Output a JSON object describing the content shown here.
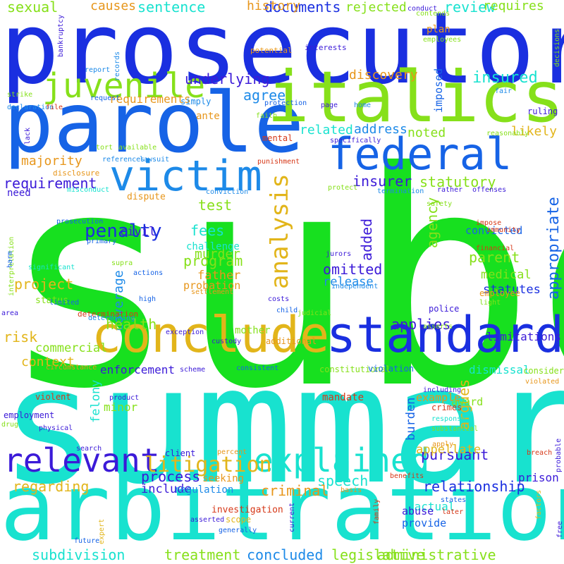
{
  "colors": {
    "blue": "#1a2fe0",
    "mid_blue": "#1663e6",
    "sky_blue": "#1d8ae8",
    "green": "#17e01f",
    "lime": "#86e01a",
    "cyan": "#18e2cf",
    "gold": "#e2b51a",
    "orange": "#e7961b",
    "red": "#d63818",
    "violet": "#3b1ad8"
  },
  "words": [
    {
      "text": "subd",
      "color": "green"
    },
    {
      "text": "summary",
      "color": "cyan"
    },
    {
      "text": "prosecutor",
      "color": "blue"
    },
    {
      "text": "arbitration",
      "color": "cyan"
    },
    {
      "text": "parole",
      "color": "mid_blue"
    },
    {
      "text": "italics",
      "color": "lime"
    },
    {
      "text": "conclude",
      "color": "gold"
    },
    {
      "text": "standard",
      "color": "blue"
    },
    {
      "text": "federal",
      "color": "mid_blue"
    },
    {
      "text": "victim",
      "color": "sky_blue"
    },
    {
      "text": "juvenile",
      "color": "lime"
    },
    {
      "text": "explained",
      "color": "cyan"
    },
    {
      "text": "relevant",
      "color": "violet"
    },
    {
      "text": "analysis",
      "color": "gold"
    },
    {
      "text": "litigation",
      "color": "gold"
    },
    {
      "text": "appropriate",
      "color": "mid_blue"
    },
    {
      "text": "penalty",
      "color": "blue"
    },
    {
      "text": "sexual",
      "color": "lime"
    },
    {
      "text": "causes",
      "color": "orange"
    },
    {
      "text": "sentence",
      "color": "cyan"
    },
    {
      "text": "documents",
      "color": "blue"
    },
    {
      "text": "review",
      "color": "cyan"
    },
    {
      "text": "rejected",
      "color": "lime"
    },
    {
      "text": "history",
      "color": "orange"
    },
    {
      "text": "requires",
      "color": "lime"
    },
    {
      "text": "underlying",
      "color": "violet"
    },
    {
      "text": "insured",
      "color": "cyan"
    },
    {
      "text": "agree",
      "color": "sky_blue"
    },
    {
      "text": "requirements",
      "color": "orange"
    },
    {
      "text": "discovery",
      "color": "orange"
    },
    {
      "text": "imposed",
      "color": "mid_blue"
    },
    {
      "text": "plan",
      "color": "orange"
    },
    {
      "text": "potential",
      "color": "orange"
    },
    {
      "text": "interests",
      "color": "violet"
    },
    {
      "text": "related",
      "color": "cyan"
    },
    {
      "text": "address",
      "color": "sky_blue"
    },
    {
      "text": "noted",
      "color": "lime"
    },
    {
      "text": "likely",
      "color": "gold"
    },
    {
      "text": "majority",
      "color": "orange"
    },
    {
      "text": "insurer",
      "color": "violet"
    },
    {
      "text": "statutory",
      "color": "lime"
    },
    {
      "text": "requirement",
      "color": "violet"
    },
    {
      "text": "test",
      "color": "lime"
    },
    {
      "text": "civil",
      "color": "violet"
    },
    {
      "text": "fees",
      "color": "cyan"
    },
    {
      "text": "murder",
      "color": "lime"
    },
    {
      "text": "program",
      "color": "lime"
    },
    {
      "text": "coverage",
      "color": "sky_blue"
    },
    {
      "text": "challenge",
      "color": "cyan"
    },
    {
      "text": "father",
      "color": "orange"
    },
    {
      "text": "probation",
      "color": "orange"
    },
    {
      "text": "project",
      "color": "gold"
    },
    {
      "text": "omitted",
      "color": "violet"
    },
    {
      "text": "release",
      "color": "sky_blue"
    },
    {
      "text": "added",
      "color": "violet"
    },
    {
      "text": "agency",
      "color": "lime"
    },
    {
      "text": "parent",
      "color": "lime"
    },
    {
      "text": "convicted",
      "color": "mid_blue"
    },
    {
      "text": "medical",
      "color": "lime"
    },
    {
      "text": "statutes",
      "color": "blue"
    },
    {
      "text": "health",
      "color": "lime"
    },
    {
      "text": "applies",
      "color": "violet"
    },
    {
      "text": "argues",
      "color": "gold"
    },
    {
      "text": "risk",
      "color": "gold"
    },
    {
      "text": "commercial",
      "color": "lime"
    },
    {
      "text": "context",
      "color": "gold"
    },
    {
      "text": "enforcement",
      "color": "violet"
    },
    {
      "text": "limitations",
      "color": "violet"
    },
    {
      "text": "dismissal",
      "color": "cyan"
    },
    {
      "text": "burden",
      "color": "mid_blue"
    },
    {
      "text": "pursuant",
      "color": "violet"
    },
    {
      "text": "felony",
      "color": "cyan"
    },
    {
      "text": "minor",
      "color": "lime"
    },
    {
      "text": "award",
      "color": "lime"
    },
    {
      "text": "example",
      "color": "orange"
    },
    {
      "text": "appellate",
      "color": "gold"
    },
    {
      "text": "process",
      "color": "violet"
    },
    {
      "text": "include",
      "color": "violet"
    },
    {
      "text": "speech",
      "color": "cyan"
    },
    {
      "text": "relationship",
      "color": "blue"
    },
    {
      "text": "regarding",
      "color": "gold"
    },
    {
      "text": "criminal",
      "color": "orange"
    },
    {
      "text": "factual",
      "color": "cyan"
    },
    {
      "text": "prison",
      "color": "violet"
    },
    {
      "text": "abuse",
      "color": "violet"
    },
    {
      "text": "provide",
      "color": "mid_blue"
    },
    {
      "text": "subdivision",
      "color": "cyan"
    },
    {
      "text": "treatment",
      "color": "lime"
    },
    {
      "text": "concluded",
      "color": "sky_blue"
    },
    {
      "text": "legislative",
      "color": "lime"
    },
    {
      "text": "administrative",
      "color": "lime"
    },
    {
      "text": "conduct",
      "color": "violet"
    },
    {
      "text": "contends",
      "color": "lime"
    },
    {
      "text": "bankruptcy",
      "color": "violet"
    },
    {
      "text": "records",
      "color": "sky_blue"
    },
    {
      "text": "employees",
      "color": "lime"
    },
    {
      "text": "decisions",
      "color": "lime"
    },
    {
      "text": "report",
      "color": "sky_blue"
    },
    {
      "text": "strike",
      "color": "lime"
    },
    {
      "text": "declaration",
      "color": "sky_blue"
    },
    {
      "text": "file",
      "color": "red"
    },
    {
      "text": "request",
      "color": "mid_blue"
    },
    {
      "text": "simply",
      "color": "sky_blue"
    },
    {
      "text": "protection",
      "color": "mid_blue"
    },
    {
      "text": "page",
      "color": "violet"
    },
    {
      "text": "home",
      "color": "sky_blue"
    },
    {
      "text": "ruling",
      "color": "violet"
    },
    {
      "text": "fair",
      "color": "sky_blue"
    },
    {
      "text": "ante",
      "color": "orange"
    },
    {
      "text": "faith",
      "color": "lime"
    },
    {
      "text": "lack",
      "color": "violet"
    },
    {
      "text": "mental",
      "color": "red"
    },
    {
      "text": "specifically",
      "color": "violet"
    },
    {
      "text": "reasonably",
      "color": "lime"
    },
    {
      "text": "tort",
      "color": "lime"
    },
    {
      "text": "available",
      "color": "lime"
    },
    {
      "text": "references",
      "color": "sky_blue"
    },
    {
      "text": "lawsuit",
      "color": "sky_blue"
    },
    {
      "text": "punishment",
      "color": "red"
    },
    {
      "text": "disclosure",
      "color": "orange"
    },
    {
      "text": "need",
      "color": "violet"
    },
    {
      "text": "misconduct",
      "color": "cyan"
    },
    {
      "text": "protect",
      "color": "lime"
    },
    {
      "text": "termination",
      "color": "sky_blue"
    },
    {
      "text": "conviction",
      "color": "sky_blue"
    },
    {
      "text": "rather",
      "color": "violet"
    },
    {
      "text": "offenses",
      "color": "violet"
    },
    {
      "text": "dispute",
      "color": "orange"
    },
    {
      "text": "safety",
      "color": "lime"
    },
    {
      "text": "impose",
      "color": "red"
    },
    {
      "text": "immunity",
      "color": "red"
    },
    {
      "text": "prosecution",
      "color": "mid_blue"
    },
    {
      "text": "primary",
      "color": "mid_blue"
    },
    {
      "text": "financial",
      "color": "red"
    },
    {
      "text": "interpretation",
      "color": "lime"
    },
    {
      "text": "harm",
      "color": "mid_blue"
    },
    {
      "text": "jurors",
      "color": "violet"
    },
    {
      "text": "supra",
      "color": "lime"
    },
    {
      "text": "significant",
      "color": "cyan"
    },
    {
      "text": "actions",
      "color": "mid_blue"
    },
    {
      "text": "independent",
      "color": "sky_blue"
    },
    {
      "text": "settlement",
      "color": "orange"
    },
    {
      "text": "employee",
      "color": "orange"
    },
    {
      "text": "light",
      "color": "lime"
    },
    {
      "text": "area",
      "color": "violet"
    },
    {
      "text": "status",
      "color": "lime"
    },
    {
      "text": "limited",
      "color": "mid_blue"
    },
    {
      "text": "high",
      "color": "mid_blue"
    },
    {
      "text": "costs",
      "color": "violet"
    },
    {
      "text": "police",
      "color": "violet"
    },
    {
      "text": "judicial",
      "color": "lime"
    },
    {
      "text": "child",
      "color": "mid_blue"
    },
    {
      "text": "determination",
      "color": "red"
    },
    {
      "text": "determining",
      "color": "sky_blue"
    },
    {
      "text": "exception",
      "color": "violet"
    },
    {
      "text": "mother",
      "color": "lime"
    },
    {
      "text": "asserts",
      "color": "lime"
    },
    {
      "text": "custody",
      "color": "violet"
    },
    {
      "text": "additional",
      "color": "orange"
    },
    {
      "text": "circumstance",
      "color": "orange"
    },
    {
      "text": "scheme",
      "color": "violet"
    },
    {
      "text": "consistent",
      "color": "mid_blue"
    },
    {
      "text": "constitutional",
      "color": "lime"
    },
    {
      "text": "violation",
      "color": "mid_blue"
    },
    {
      "text": "consider",
      "color": "lime"
    },
    {
      "text": "violated",
      "color": "orange"
    },
    {
      "text": "violent",
      "color": "red"
    },
    {
      "text": "product",
      "color": "violet"
    },
    {
      "text": "mandate",
      "color": "red"
    },
    {
      "text": "including",
      "color": "violet"
    },
    {
      "text": "crimes",
      "color": "red"
    },
    {
      "text": "employment",
      "color": "violet"
    },
    {
      "text": "drug",
      "color": "lime"
    },
    {
      "text": "physical",
      "color": "violet"
    },
    {
      "text": "response",
      "color": "cyan"
    },
    {
      "text": "substantial",
      "color": "lime"
    },
    {
      "text": "apply",
      "color": "orange"
    },
    {
      "text": "search",
      "color": "violet"
    },
    {
      "text": "client",
      "color": "violet"
    },
    {
      "text": "percent",
      "color": "orange"
    },
    {
      "text": "breach",
      "color": "red"
    },
    {
      "text": "probable",
      "color": "violet"
    },
    {
      "text": "seeking",
      "color": "orange"
    },
    {
      "text": "regulation",
      "color": "sky_blue"
    },
    {
      "text": "benefits",
      "color": "red"
    },
    {
      "text": "basis",
      "color": "orange"
    },
    {
      "text": "investigation",
      "color": "red"
    },
    {
      "text": "expert",
      "color": "gold"
    },
    {
      "text": "scope",
      "color": "gold"
    },
    {
      "text": "current",
      "color": "violet"
    },
    {
      "text": "states",
      "color": "mid_blue"
    },
    {
      "text": "later",
      "color": "red"
    },
    {
      "text": "family",
      "color": "red"
    },
    {
      "text": "factors",
      "color": "gold"
    },
    {
      "text": "free",
      "color": "violet"
    },
    {
      "text": "asserted",
      "color": "violet"
    },
    {
      "text": "generally",
      "color": "mid_blue"
    },
    {
      "text": "future",
      "color": "mid_blue"
    }
  ]
}
